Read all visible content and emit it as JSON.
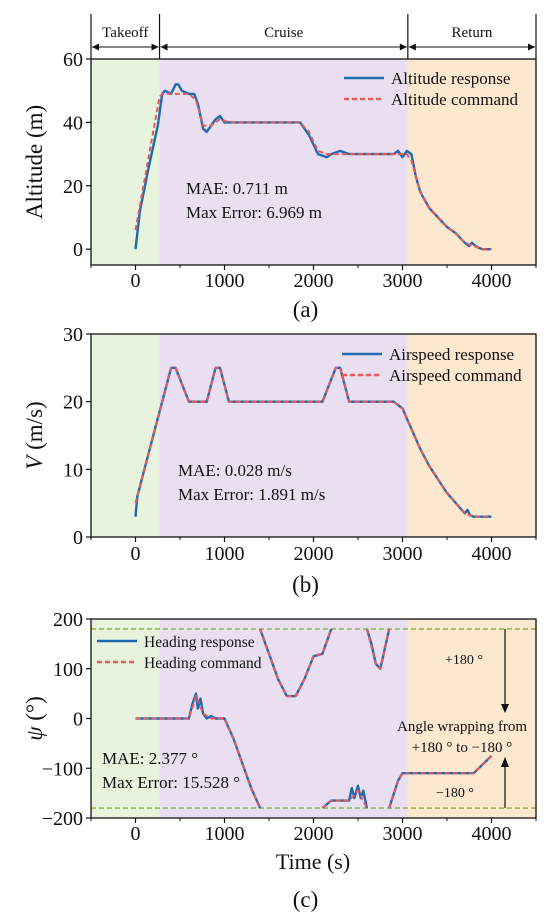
{
  "colors": {
    "takeoff": "#e8f3dd",
    "cruise": "#e9dff0",
    "return": "#fbe8cf",
    "response": "#1f6bb0",
    "command": "#e85a5a",
    "wrap_line": "#7cb82f"
  },
  "phases": [
    {
      "label": "Takeoff",
      "from": -500,
      "to": 270
    },
    {
      "label": "Cruise",
      "from": 270,
      "to": 3060
    },
    {
      "label": "Return",
      "from": 3060,
      "to": 4500
    }
  ],
  "xlabel": "Time (s)",
  "xticks": [
    "0",
    "1000",
    "2000",
    "3000",
    "4000"
  ],
  "chart_data": [
    {
      "type": "line",
      "panel_label": "(a)",
      "ylabel": "Altitude (m)",
      "xlim": [
        -500,
        4500
      ],
      "ylim": [
        -5,
        60
      ],
      "yticks": [
        0,
        20,
        40,
        60
      ],
      "legend_position": "top-right",
      "annotation": [
        "MAE: 0.711 m",
        "Max Error: 6.969 m"
      ],
      "series": [
        {
          "name": "Altitude response",
          "style": "solid",
          "x": [
            0,
            50,
            150,
            250,
            300,
            330,
            400,
            450,
            480,
            520,
            600,
            660,
            700,
            760,
            800,
            850,
            900,
            950,
            1000,
            1100,
            1400,
            1700,
            1850,
            1950,
            2050,
            2150,
            2200,
            2300,
            2400,
            2600,
            2900,
            2950,
            3000,
            3050,
            3100,
            3150,
            3200,
            3300,
            3400,
            3500,
            3600,
            3700,
            3750,
            3780,
            3820,
            3850,
            3900,
            4000
          ],
          "y": [
            0,
            12,
            26,
            39,
            49,
            50,
            49,
            52,
            52,
            50,
            49,
            49,
            46,
            38,
            37,
            39,
            41,
            42,
            40,
            40,
            40,
            40,
            40,
            36,
            30,
            29,
            30,
            31,
            30,
            30,
            30,
            31,
            29,
            31,
            30,
            23,
            18,
            13,
            10,
            7,
            5,
            2,
            1,
            2,
            1,
            0.5,
            0,
            0
          ]
        },
        {
          "name": "Altitude command",
          "style": "dashed",
          "x": [
            0,
            270,
            300,
            600,
            680,
            760,
            850,
            950,
            1050,
            1850,
            1950,
            2050,
            2150,
            2250,
            2300,
            2600,
            3000,
            3050,
            3100,
            3200,
            3300,
            3400,
            3500,
            3600,
            3700,
            3750,
            3800,
            3900,
            4000
          ],
          "y": [
            6,
            48,
            49,
            49,
            47,
            39,
            39,
            41,
            40,
            40,
            37,
            31,
            30,
            30,
            30,
            30,
            30,
            30,
            28,
            18,
            13,
            10,
            7,
            5,
            2,
            1.5,
            1,
            0,
            0
          ]
        }
      ]
    },
    {
      "type": "line",
      "panel_label": "(b)",
      "ylabel_symbol": "V",
      "ylabel_rest": " (m/s)",
      "xlim": [
        -500,
        4500
      ],
      "ylim": [
        0,
        30
      ],
      "yticks": [
        0,
        10,
        20,
        30
      ],
      "legend_position": "top-right",
      "annotation": [
        "MAE: 0.028 m/s",
        "Max Error: 1.891 m/s"
      ],
      "series": [
        {
          "name": "Airspeed response",
          "style": "solid",
          "x": [
            0,
            20,
            100,
            200,
            300,
            400,
            450,
            600,
            800,
            900,
            950,
            1050,
            1400,
            1700,
            2100,
            2250,
            2300,
            2400,
            2700,
            2900,
            3000,
            3050,
            3100,
            3200,
            3300,
            3400,
            3500,
            3600,
            3700,
            3730,
            3760,
            3800,
            4000
          ],
          "y": [
            3,
            6,
            10,
            15,
            20,
            25,
            25,
            20,
            20,
            25,
            25,
            20,
            20,
            20,
            20,
            25,
            25,
            20,
            20,
            20,
            19,
            17.5,
            16,
            13,
            10.5,
            8.5,
            6.5,
            5,
            3.5,
            4,
            3.2,
            3,
            3
          ]
        },
        {
          "name": "Airspeed command",
          "style": "dashed",
          "x": [
            0,
            100,
            200,
            300,
            400,
            450,
            600,
            800,
            900,
            950,
            1050,
            2100,
            2250,
            2300,
            2400,
            2900,
            3000,
            3100,
            3200,
            3300,
            3400,
            3500,
            3600,
            3700,
            3800,
            4000
          ],
          "y": [
            5,
            10,
            15,
            20,
            25,
            25,
            20,
            20,
            25,
            25,
            20,
            20,
            25,
            25,
            20,
            20,
            19,
            16,
            13,
            10.5,
            8.5,
            6.5,
            5,
            3.5,
            3,
            3
          ]
        }
      ]
    },
    {
      "type": "line",
      "panel_label": "(c)",
      "ylabel_symbol": "ψ",
      "ylabel_rest": " (°)",
      "xlim": [
        -500,
        4500
      ],
      "ylim": [
        -200,
        200
      ],
      "yticks": [
        -200,
        -100,
        0,
        100,
        200
      ],
      "legend_position": "top-left",
      "annotation": [
        "MAE: 2.377 °",
        "Max Error: 15.528 °"
      ],
      "wrap_lines": [
        180,
        -180
      ],
      "wrap_labels": [
        "+180 °",
        "−180 °"
      ],
      "wrap_note": [
        "Angle wrapping from",
        "+180 ° to −180 °"
      ],
      "series": [
        {
          "name": "Heading response",
          "style": "solid",
          "segments": [
            {
              "x": [
                0,
                600,
                640,
                680,
                700,
                730,
                760,
                800,
                850,
                900,
                1000,
                1100,
                1200,
                1300,
                1400
              ],
              "y": [
                0,
                0,
                30,
                50,
                20,
                40,
                10,
                0,
                5,
                0,
                0,
                -40,
                -90,
                -140,
                -180
              ]
            },
            {
              "x": [
                1400,
                1500,
                1600,
                1700,
                1800,
                1900,
                2000,
                2100,
                2200
              ],
              "y": [
                180,
                130,
                80,
                45,
                45,
                80,
                125,
                130,
                180
              ]
            },
            {
              "x": [
                2100,
                2200,
                2400,
                2430,
                2460,
                2500,
                2530,
                2560,
                2600
              ],
              "y": [
                -180,
                -165,
                -165,
                -140,
                -160,
                -135,
                -160,
                -145,
                -180
              ]
            },
            {
              "x": [
                2600,
                2650,
                2700,
                2750,
                2800,
                2850
              ],
              "y": [
                180,
                150,
                110,
                100,
                140,
                180
              ]
            },
            {
              "x": [
                2850,
                2950,
                3000,
                3100,
                3800,
                4000
              ],
              "y": [
                -180,
                -125,
                -110,
                -110,
                -110,
                -75
              ]
            }
          ]
        },
        {
          "name": "Heading command",
          "style": "dashed",
          "segments": [
            {
              "x": [
                0,
                600,
                680,
                760,
                850,
                1000,
                1100,
                1200,
                1300,
                1400
              ],
              "y": [
                0,
                0,
                45,
                10,
                0,
                0,
                -40,
                -90,
                -140,
                -180
              ]
            },
            {
              "x": [
                1400,
                1500,
                1600,
                1700,
                1800,
                1900,
                2000,
                2100,
                2200
              ],
              "y": [
                180,
                130,
                80,
                45,
                45,
                80,
                125,
                130,
                180
              ]
            },
            {
              "x": [
                2100,
                2200,
                2400,
                2500,
                2600
              ],
              "y": [
                -180,
                -165,
                -165,
                -145,
                -180
              ]
            },
            {
              "x": [
                2600,
                2700,
                2750,
                2800,
                2850
              ],
              "y": [
                180,
                110,
                100,
                140,
                180
              ]
            },
            {
              "x": [
                2850,
                2950,
                3000,
                3100,
                3800,
                4000
              ],
              "y": [
                -180,
                -125,
                -110,
                -110,
                -110,
                -75
              ]
            }
          ]
        }
      ]
    }
  ]
}
